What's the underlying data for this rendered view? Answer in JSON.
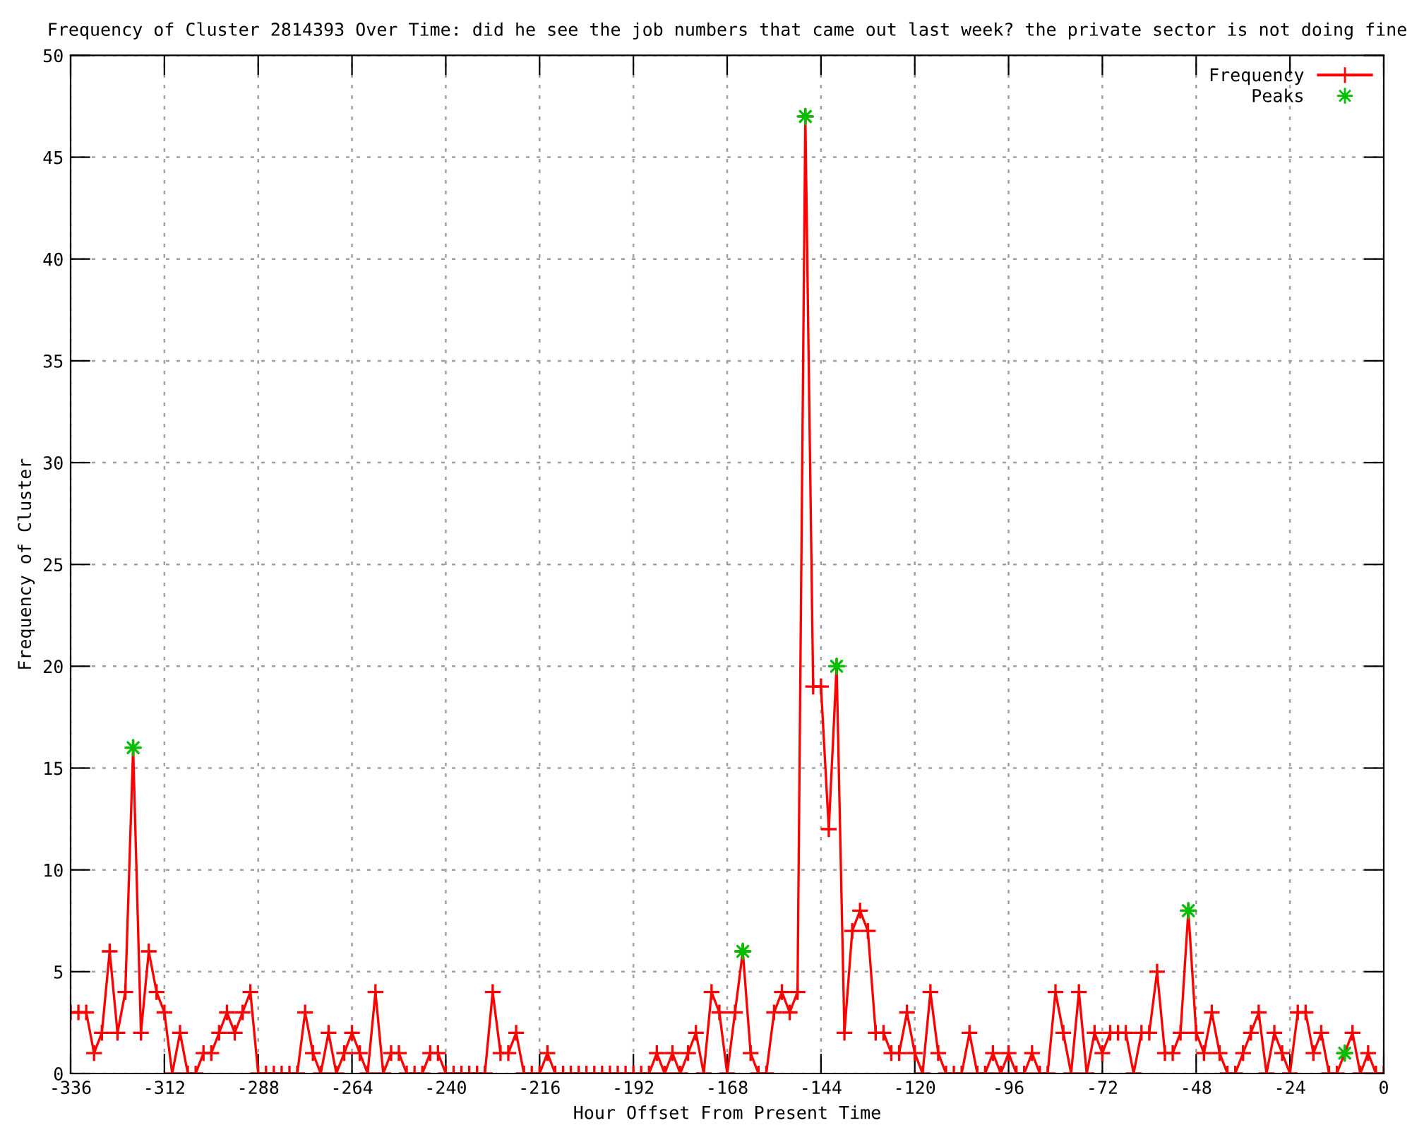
{
  "chart_data": {
    "type": "line",
    "title": "Frequency of Cluster 2814393 Over Time: did he see the job numbers that came out last week? the private sector is not doing fine",
    "xlabel": "Hour Offset From Present Time",
    "ylabel": "Frequency of Cluster",
    "xlim": [
      -336,
      0
    ],
    "xticks": [
      -336,
      -312,
      -288,
      -264,
      -240,
      -216,
      -192,
      -168,
      -144,
      -120,
      -96,
      -72,
      -48,
      -24,
      0
    ],
    "ylim": [
      0,
      50
    ],
    "yticks": [
      0,
      5,
      10,
      15,
      20,
      25,
      30,
      35,
      40,
      45,
      50
    ],
    "grid": true,
    "legend": "top right",
    "series": [
      {
        "name": "Frequency",
        "color": "#ff0000",
        "marker": "cross",
        "line_style": "solid",
        "x": [
          -336,
          -334,
          -332,
          -330,
          -328,
          -326,
          -324,
          -322,
          -320,
          -318,
          -316,
          -314,
          -312,
          -310,
          -308,
          -306,
          -304,
          -302,
          -300,
          -298,
          -296,
          -294,
          -292,
          -290,
          -288,
          -286,
          -284,
          -282,
          -280,
          -278,
          -276,
          -274,
          -272,
          -270,
          -268,
          -266,
          -264,
          -262,
          -260,
          -258,
          -256,
          -254,
          -252,
          -250,
          -248,
          -246,
          -244,
          -242,
          -240,
          -238,
          -236,
          -234,
          -232,
          -230,
          -228,
          -226,
          -224,
          -222,
          -220,
          -218,
          -216,
          -214,
          -212,
          -210,
          -208,
          -206,
          -204,
          -202,
          -200,
          -198,
          -196,
          -194,
          -192,
          -190,
          -188,
          -186,
          -184,
          -182,
          -180,
          -178,
          -176,
          -174,
          -172,
          -170,
          -168,
          -166,
          -164,
          -162,
          -160,
          -158,
          -156,
          -154,
          -152,
          -150,
          -148,
          -146,
          -144,
          -142,
          -140,
          -138,
          -136,
          -134,
          -132,
          -130,
          -128,
          -126,
          -124,
          -122,
          -120,
          -118,
          -116,
          -114,
          -112,
          -110,
          -108,
          -106,
          -104,
          -102,
          -100,
          -98,
          -96,
          -94,
          -92,
          -90,
          -88,
          -86,
          -84,
          -82,
          -80,
          -78,
          -76,
          -74,
          -72,
          -70,
          -68,
          -66,
          -64,
          -62,
          -60,
          -58,
          -56,
          -54,
          -52,
          -50,
          -48,
          -46,
          -44,
          -42,
          -40,
          -38,
          -36,
          -34,
          -32,
          -30,
          -28,
          -26,
          -24,
          -22,
          -20,
          -18,
          -16,
          -14,
          -12,
          -10,
          -8,
          -6,
          -4,
          -2,
          0
        ],
        "values": [
          3,
          3,
          3,
          1,
          2,
          6,
          2,
          4,
          16,
          2,
          6,
          4,
          3,
          0,
          2,
          0,
          0,
          1,
          1,
          2,
          3,
          2,
          3,
          4,
          0,
          0,
          0,
          0,
          0,
          0,
          3,
          1,
          0,
          2,
          0,
          1,
          2,
          1,
          0,
          4,
          0,
          1,
          1,
          0,
          0,
          0,
          1,
          1,
          0,
          0,
          0,
          0,
          0,
          0,
          4,
          1,
          1,
          2,
          0,
          0,
          0,
          1,
          0,
          0,
          0,
          0,
          0,
          0,
          0,
          0,
          0,
          0,
          0,
          0,
          0,
          1,
          0,
          1,
          0,
          1,
          2,
          0,
          4,
          3,
          0,
          3,
          6,
          1,
          0,
          0,
          3,
          4,
          3,
          4,
          47,
          19,
          19,
          12,
          20,
          2,
          7,
          8,
          7,
          2,
          2,
          1,
          1,
          3,
          1,
          0,
          4,
          1,
          0,
          0,
          0,
          2,
          0,
          0,
          1,
          0,
          1,
          0,
          0,
          1,
          0,
          0,
          4,
          2,
          0,
          4,
          0,
          2,
          1,
          2,
          2,
          2,
          0,
          2,
          2,
          5,
          1,
          1,
          2,
          8,
          2,
          1,
          3,
          1,
          0,
          0,
          1,
          2,
          3,
          0,
          2,
          1,
          0,
          3,
          3,
          1,
          2,
          0,
          0,
          1,
          2,
          0,
          1,
          0,
          0
        ]
      },
      {
        "name": "Peaks",
        "type": "scatter",
        "color": "#00c000",
        "marker": "star",
        "x": [
          -320,
          -164,
          -148,
          -140,
          -50,
          -10
        ],
        "values": [
          16,
          6,
          47,
          20,
          8,
          1
        ]
      }
    ]
  }
}
